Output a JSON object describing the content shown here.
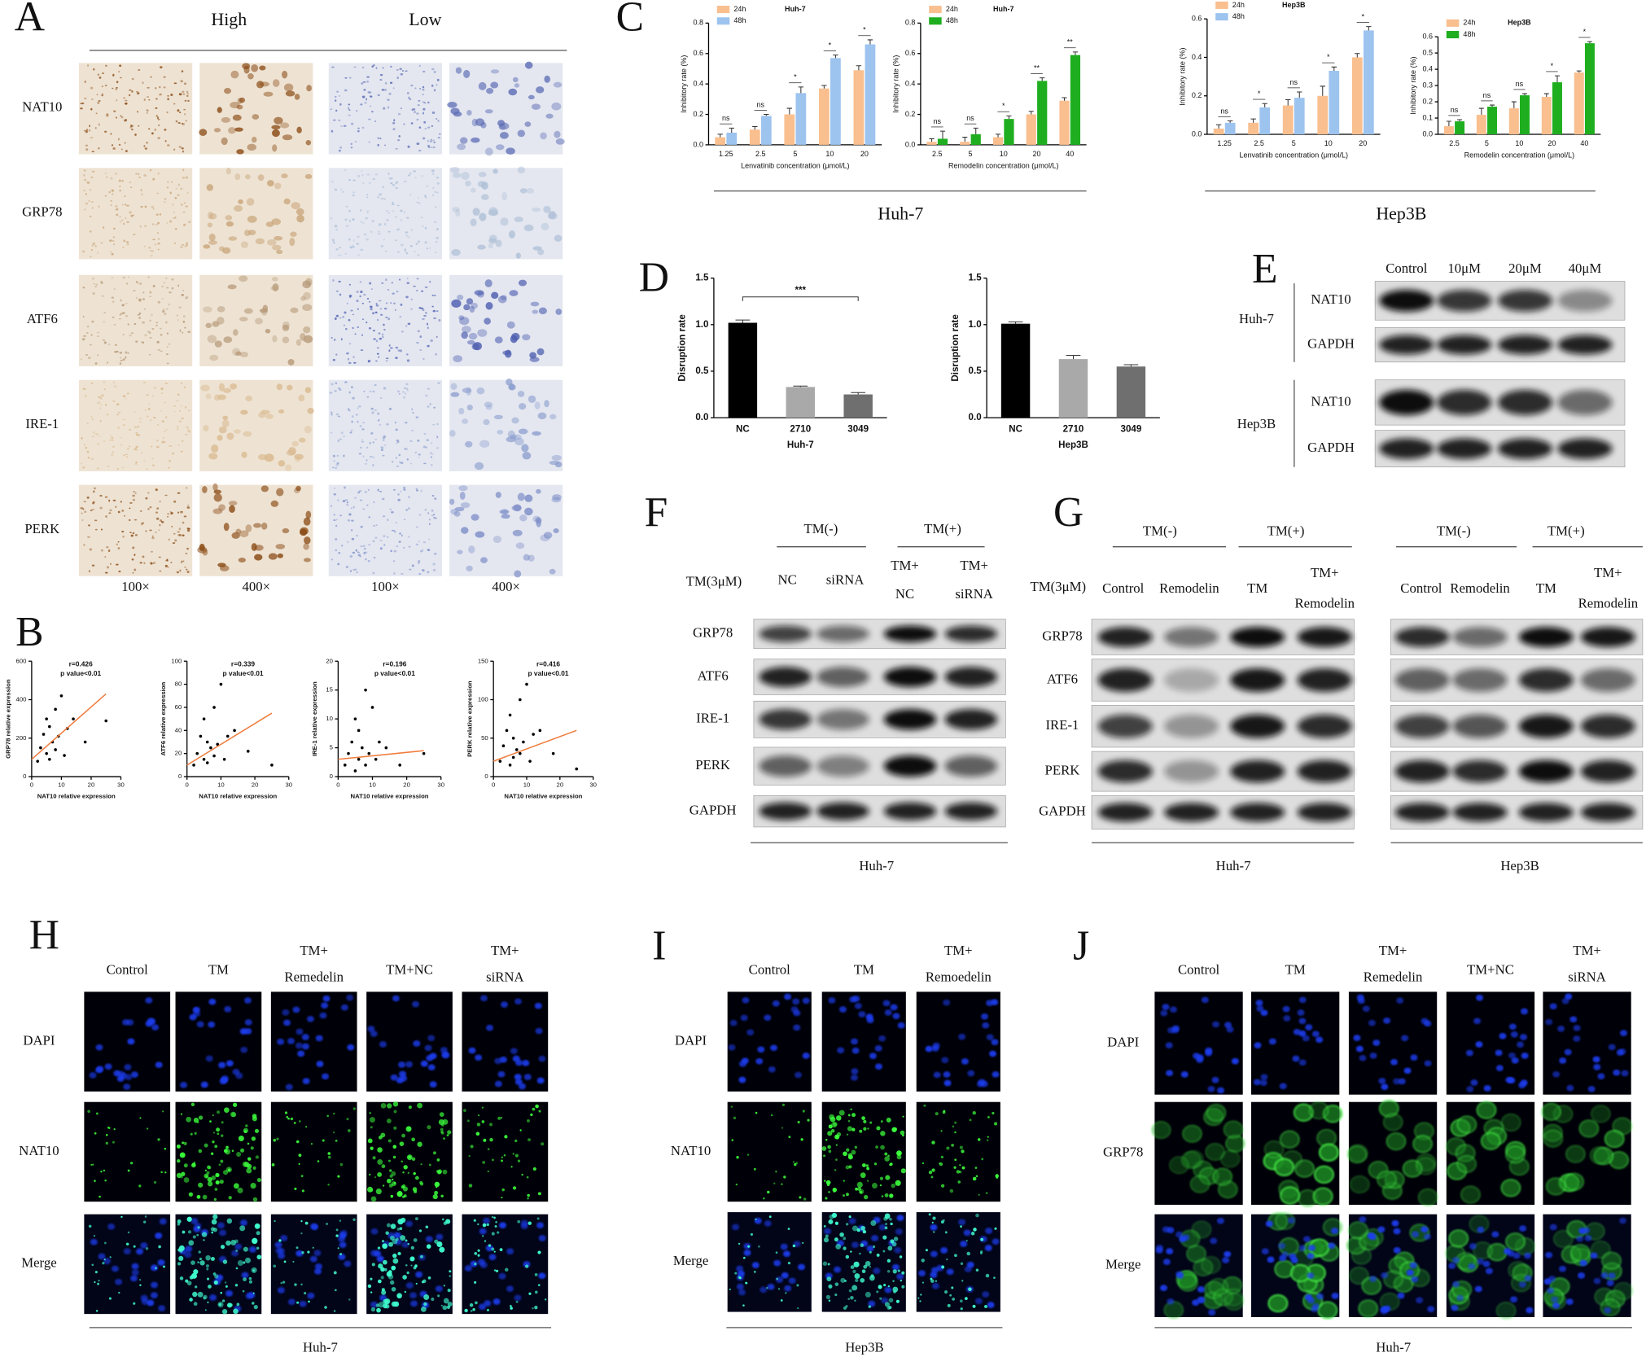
{
  "chart_data": [
    {
      "type": "bar",
      "subtitle": "Huh-7",
      "ylabel": "Inhibitory rate (%)",
      "xlabel": "Lenvatinib concentration (μmol/L)",
      "categories": [
        "1.25",
        "2.5",
        "5",
        "10",
        "20"
      ],
      "series": [
        {
          "name": "24h",
          "color": "#f9bf8f",
          "values": [
            0.05,
            0.1,
            0.2,
            0.37,
            0.49
          ],
          "errors": [
            0.02,
            0.02,
            0.04,
            0.02,
            0.03
          ]
        },
        {
          "name": "48h",
          "color": "#9dc3ef",
          "values": [
            0.08,
            0.19,
            0.34,
            0.57,
            0.66
          ],
          "errors": [
            0.03,
            0.01,
            0.04,
            0.02,
            0.03
          ]
        }
      ],
      "significance": [
        "ns",
        "ns",
        "*",
        "*",
        "*"
      ],
      "ylim": [
        0,
        0.8
      ],
      "yticks": [
        {
          "value": 0,
          "label": "0.0"
        },
        0.2,
        0.4,
        0.6,
        0.8
      ]
    },
    {
      "type": "bar",
      "subtitle": "Huh-7",
      "ylabel": "Inhibitory rate (%)",
      "xlabel": "Remodelin concentration (μmol/L)",
      "categories": [
        "2.5",
        "5",
        "10",
        "20",
        "40"
      ],
      "series": [
        {
          "name": "24h",
          "color": "#f9bf8f",
          "values": [
            0.02,
            0.02,
            0.05,
            0.2,
            0.29
          ],
          "errors": [
            0.02,
            0.03,
            0.02,
            0.02,
            0.02
          ]
        },
        {
          "name": "48h",
          "color": "#1fae1f",
          "values": [
            0.04,
            0.07,
            0.17,
            0.42,
            0.59
          ],
          "errors": [
            0.05,
            0.04,
            0.02,
            0.02,
            0.02
          ]
        }
      ],
      "significance": [
        "ns",
        "ns",
        "*",
        "**",
        "**"
      ],
      "ylim": [
        0,
        0.8
      ],
      "yticks": [
        {
          "value": 0,
          "label": "0.0"
        },
        0.2,
        0.4,
        0.6,
        0.8
      ]
    },
    {
      "type": "bar",
      "subtitle": "Hep3B",
      "ylabel": "Inhibitory rate (%)",
      "xlabel": "Lenvatinib concentration (μmol/L)",
      "categories": [
        "1.25",
        "2.5",
        "5",
        "10",
        "20"
      ],
      "series": [
        {
          "name": "24h",
          "color": "#f9bf8f",
          "values": [
            0.03,
            0.06,
            0.15,
            0.2,
            0.4
          ],
          "errors": [
            0.02,
            0.02,
            0.03,
            0.05,
            0.02
          ]
        },
        {
          "name": "48h",
          "color": "#9dc3ef",
          "values": [
            0.06,
            0.14,
            0.19,
            0.33,
            0.54
          ],
          "errors": [
            0.01,
            0.02,
            0.03,
            0.02,
            0.02
          ]
        }
      ],
      "significance": [
        "ns",
        "*",
        "ns",
        "*",
        "*"
      ],
      "ylim": [
        0,
        0.6
      ],
      "yticks": [
        {
          "value": 0,
          "label": "0.0"
        },
        0.2,
        0.4,
        0.6
      ]
    },
    {
      "type": "bar",
      "subtitle": "Hep3B",
      "ylabel": "Inhibitory rate (%)",
      "xlabel": "Remodelin concentration (μmol/L)",
      "categories": [
        "2.5",
        "5",
        "10",
        "20",
        "40"
      ],
      "series": [
        {
          "name": "24h",
          "color": "#f9bf8f",
          "values": [
            0.05,
            0.12,
            0.16,
            0.23,
            0.38
          ],
          "errors": [
            0.03,
            0.04,
            0.04,
            0.02,
            0.01
          ]
        },
        {
          "name": "48h",
          "color": "#1fae1f",
          "values": [
            0.08,
            0.17,
            0.24,
            0.32,
            0.56
          ],
          "errors": [
            0.01,
            0.01,
            0.01,
            0.04,
            0.01
          ]
        }
      ],
      "significance": [
        "ns",
        "ns",
        "ns",
        "*",
        "*"
      ],
      "ylim": [
        0,
        0.6
      ],
      "yticks": [
        {
          "value": 0,
          "label": "0.0"
        },
        0.1,
        0.2,
        0.3,
        0.4,
        0.5,
        0.6
      ]
    },
    {
      "type": "bar",
      "ylabel": "Disruption rate",
      "xlabel": "Huh-7",
      "categories": [
        "NC",
        "2710",
        "3049"
      ],
      "values": [
        1.02,
        0.33,
        0.25
      ],
      "errors": [
        0.03,
        0.01,
        0.02
      ],
      "colors": [
        "#000000",
        "#a9a9a9",
        "#6f6f6f"
      ],
      "significance": "***",
      "ylim": [
        0,
        1.5
      ],
      "yticks": [
        {
          "value": 0,
          "label": "0.0"
        },
        0.5,
        {
          "value": 1,
          "label": "1.0"
        },
        1.5
      ]
    },
    {
      "type": "bar",
      "ylabel": "Disruption rate",
      "xlabel": "Hep3B",
      "categories": [
        "NC",
        "2710",
        "3049"
      ],
      "values": [
        1.01,
        0.63,
        0.55
      ],
      "errors": [
        0.02,
        0.04,
        0.02
      ],
      "colors": [
        "#000000",
        "#a9a9a9",
        "#6f6f6f"
      ],
      "ylim": [
        0,
        1.5
      ],
      "yticks": [
        {
          "value": 0,
          "label": "0.0"
        },
        0.5,
        {
          "value": 1,
          "label": "1.0"
        },
        1.5
      ]
    },
    {
      "type": "scatter",
      "ylabel": "GRP78 relative expression",
      "xlabel": "NAT10 relative expression",
      "annotations": [
        "r=0.426",
        "p value<0.01"
      ],
      "color": "#000000",
      "x": [
        2,
        3,
        4,
        5,
        5,
        6,
        6,
        7,
        8,
        8,
        9,
        10,
        11,
        12,
        14,
        18,
        25
      ],
      "y": [
        80,
        150,
        220,
        120,
        300,
        90,
        260,
        180,
        350,
        140,
        210,
        420,
        110,
        250,
        300,
        180,
        290
      ],
      "fit": {
        "color": "#f07c3c",
        "x": [
          0,
          25
        ],
        "y": [
          90,
          430
        ]
      },
      "xlim": [
        0,
        30
      ],
      "xticks": [
        0,
        10,
        20,
        30
      ],
      "ylim": [
        0,
        600
      ],
      "yticks": [
        0,
        200,
        400,
        600
      ]
    },
    {
      "type": "scatter",
      "ylabel": "ATF6 relative expression",
      "xlabel": "NAT10 relative expression",
      "annotations": [
        "r=0.339",
        "p value<0.01"
      ],
      "color": "#000000",
      "x": [
        2,
        3,
        4,
        5,
        5,
        6,
        6,
        7,
        8,
        8,
        9,
        10,
        11,
        12,
        14,
        18,
        25
      ],
      "y": [
        10,
        20,
        35,
        15,
        50,
        12,
        30,
        25,
        60,
        18,
        28,
        80,
        15,
        35,
        40,
        22,
        10
      ],
      "fit": {
        "color": "#f07c3c",
        "x": [
          0,
          25
        ],
        "y": [
          10,
          55
        ]
      },
      "xlim": [
        0,
        30
      ],
      "xticks": [
        0,
        10,
        20,
        30
      ],
      "ylim": [
        0,
        100
      ],
      "yticks": [
        0,
        20,
        40,
        60,
        80,
        100
      ]
    },
    {
      "type": "scatter",
      "ylabel": "IRE-1 relative expression",
      "xlabel": "NAT10 relative expression",
      "annotations": [
        "r=0.196",
        "p value<0.01"
      ],
      "color": "#000000",
      "x": [
        2,
        3,
        4,
        5,
        5,
        6,
        6,
        7,
        8,
        8,
        9,
        10,
        11,
        12,
        14,
        18,
        25
      ],
      "y": [
        2,
        4,
        6,
        1,
        10,
        3,
        8,
        5,
        15,
        2,
        4,
        12,
        3,
        6,
        5,
        2,
        4
      ],
      "fit": {
        "color": "#f07c3c",
        "x": [
          0,
          25
        ],
        "y": [
          3,
          4.5
        ]
      },
      "xlim": [
        0,
        30
      ],
      "xticks": [
        0,
        10,
        20,
        30
      ],
      "ylim": [
        0,
        20
      ],
      "yticks": [
        0,
        5,
        10,
        15,
        20
      ]
    },
    {
      "type": "scatter",
      "ylabel": "PERK relative expression",
      "xlabel": "NAT10 relative expression",
      "annotations": [
        "r=0.416",
        "p value<0.01"
      ],
      "color": "#000000",
      "x": [
        2,
        3,
        4,
        5,
        5,
        6,
        6,
        7,
        8,
        8,
        9,
        10,
        11,
        12,
        14,
        18,
        25
      ],
      "y": [
        20,
        40,
        60,
        15,
        80,
        25,
        50,
        35,
        100,
        30,
        45,
        120,
        20,
        55,
        60,
        30,
        10
      ],
      "fit": {
        "color": "#f07c3c",
        "x": [
          0,
          25
        ],
        "y": [
          20,
          60
        ]
      },
      "xlim": [
        0,
        30
      ],
      "xticks": [
        0,
        10,
        20,
        30
      ],
      "ylim": [
        0,
        150
      ],
      "yticks": [
        0,
        50,
        100,
        150
      ]
    }
  ],
  "figure": {
    "panel_labels": [
      "A",
      "B",
      "C",
      "D",
      "E",
      "F",
      "G",
      "H",
      "I",
      "J"
    ],
    "a": {
      "columns": [
        "High",
        "Low"
      ],
      "rows": [
        "NAT10",
        "GRP78",
        "ATF6",
        "IRE-1",
        "PERK"
      ],
      "magnifications": [
        "100×",
        "400×",
        "100×",
        "400×"
      ]
    },
    "c": {
      "groups": [
        "Huh-7",
        "Hep3B"
      ]
    },
    "e": {
      "lanes": [
        "Control",
        "10μM",
        "20μM",
        "40μM"
      ],
      "cells": [
        "Huh-7",
        "Hep3B"
      ],
      "proteins": [
        "NAT10",
        "GAPDH",
        "NAT10",
        "GAPDH"
      ]
    },
    "f": {
      "treatment": "TM(3μM)",
      "groups": [
        "TM(-)",
        "TM(+)"
      ],
      "lanes": [
        [
          "NC"
        ],
        [
          "siRNA"
        ],
        [
          "TM+",
          "NC"
        ],
        [
          "TM+",
          "siRNA"
        ]
      ],
      "proteins": [
        "GRP78",
        "ATF6",
        "IRE-1",
        "PERK",
        "GAPDH"
      ],
      "cell": "Huh-7"
    },
    "g": {
      "treatment": "TM(3μM)",
      "proteins": [
        "GRP78",
        "ATF6",
        "IRE-1",
        "PERK",
        "GAPDH"
      ],
      "blots": [
        {
          "groups": [
            "TM(-)",
            "TM(+)"
          ],
          "lanes": [
            [
              "Control"
            ],
            [
              "Remodelin"
            ],
            [
              "TM"
            ],
            [
              "TM+",
              "Remodelin"
            ]
          ],
          "cell": "Huh-7"
        },
        {
          "groups": [
            "TM(-)",
            "TM(+)"
          ],
          "lanes": [
            [
              "Control"
            ],
            [
              "Remodelin"
            ],
            [
              "TM"
            ],
            [
              "TM+",
              "Remodelin"
            ]
          ],
          "cell": "Hep3B"
        }
      ]
    },
    "h": {
      "columns": [
        [
          "Control"
        ],
        [
          "TM"
        ],
        [
          "TM+",
          "Remedelin"
        ],
        [
          "TM+NC"
        ],
        [
          "TM+",
          "siRNA"
        ]
      ],
      "rows": [
        "DAPI",
        "NAT10",
        "Merge"
      ],
      "cell": "Huh-7"
    },
    "i": {
      "columns": [
        [
          "Control"
        ],
        [
          "TM"
        ],
        [
          "TM+",
          "Remoedelin"
        ]
      ],
      "rows": [
        "DAPI",
        "NAT10",
        "Merge"
      ],
      "cell": "Hep3B"
    },
    "j": {
      "columns": [
        [
          "Control"
        ],
        [
          "TM"
        ],
        [
          "TM+",
          "Remedelin"
        ],
        [
          "TM+NC"
        ],
        [
          "TM+",
          "siRNA"
        ]
      ],
      "rows": [
        "DAPI",
        "GRP78",
        "Merge"
      ],
      "cell": "Huh-7"
    }
  }
}
